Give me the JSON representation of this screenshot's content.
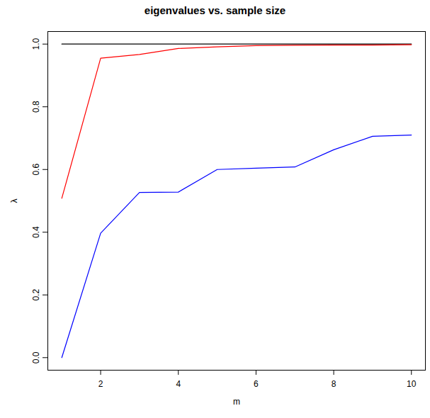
{
  "chart_data": {
    "type": "line",
    "title": "eigenvalues vs. sample size",
    "x_label": "m",
    "y_label": "λ",
    "x": [
      1,
      2,
      3,
      4,
      5,
      6,
      7,
      8,
      9,
      10
    ],
    "series": [
      {
        "color": "black",
        "values": [
          1.0,
          1.0,
          1.0,
          1.0,
          1.0,
          1.0,
          1.0,
          1.0,
          1.0,
          1.0
        ]
      },
      {
        "color": "red",
        "values": [
          0.508,
          0.955,
          0.967,
          0.986,
          0.991,
          0.995,
          0.996,
          0.997,
          0.997,
          0.998
        ]
      },
      {
        "color": "blue",
        "values": [
          0.0,
          0.397,
          0.527,
          0.528,
          0.6,
          0.604,
          0.608,
          0.663,
          0.706,
          0.71
        ]
      }
    ],
    "xlim": [
      0.64,
      10.36
    ],
    "ylim": [
      -0.04,
      1.04
    ],
    "xticks": [
      2,
      4,
      6,
      8,
      10
    ],
    "yticks": [
      {
        "value": 0,
        "label": "0.0"
      },
      0.2,
      0.4,
      0.6,
      0.8,
      {
        "value": 1,
        "label": "1.0"
      }
    ],
    "grid": false
  }
}
